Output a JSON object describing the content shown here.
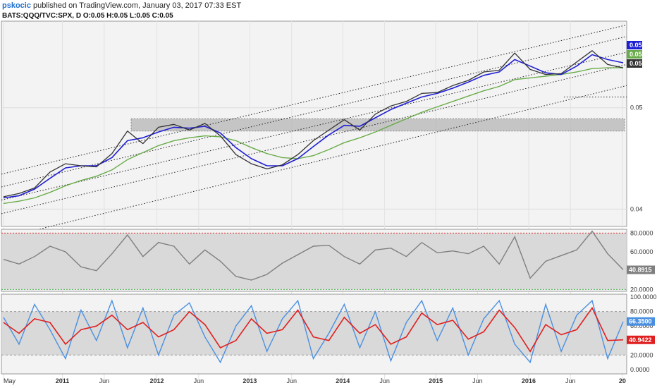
{
  "header": {
    "user": "pskocic",
    "published": "published on TradingView.com, January 03, 2017 07:33 EST",
    "symbol_line": "BATS:QQQ/TVC:SPX, D  O:0.05  H:0.05  L:0.05  C:0.05"
  },
  "colors": {
    "price": "#333333",
    "fast_ma": "#1f1fd6",
    "slow_ma": "#6aac4a",
    "rsi": "#7f7f7f",
    "stoch_k": "#4a90e2",
    "stoch_d": "#e02020",
    "band": "#d3d3d3"
  },
  "chart_data": [
    {
      "type": "line",
      "title": "BATS:QQQ/TVC:SPX",
      "xlabel": "",
      "ylabel": "",
      "x_ticks": [
        "May",
        "2011",
        "Jun",
        "2012",
        "Jun",
        "2013",
        "Jun",
        "2014",
        "Jun",
        "2015",
        "Jun",
        "2016",
        "Jun",
        "20"
      ],
      "y_scale": "log",
      "y_ticks": [
        "0.05",
        "0.04"
      ],
      "price_tags": {
        "blue": "0.05",
        "green": "0.05",
        "price": "0.05"
      },
      "x": [
        "2010-05",
        "2010-07",
        "2010-09",
        "2010-11",
        "2011-01",
        "2011-03",
        "2011-05",
        "2011-07",
        "2011-09",
        "2011-11",
        "2012-01",
        "2012-03",
        "2012-05",
        "2012-07",
        "2012-09",
        "2012-11",
        "2013-01",
        "2013-03",
        "2013-05",
        "2013-07",
        "2013-09",
        "2013-11",
        "2014-01",
        "2014-03",
        "2014-05",
        "2014-07",
        "2014-09",
        "2014-11",
        "2015-01",
        "2015-03",
        "2015-05",
        "2015-07",
        "2015-09",
        "2015-11",
        "2016-01",
        "2016-03",
        "2016-05",
        "2016-07",
        "2016-09",
        "2016-11",
        "2017-01"
      ],
      "series": [
        {
          "name": "QQQ/SPX",
          "values": [
            0.0411,
            0.0414,
            0.0419,
            0.0434,
            0.0442,
            0.044,
            0.0439,
            0.0452,
            0.0475,
            0.0462,
            0.0479,
            0.0482,
            0.0476,
            0.0483,
            0.047,
            0.0451,
            0.0442,
            0.0437,
            0.0441,
            0.0451,
            0.0465,
            0.0476,
            0.0487,
            0.0476,
            0.0493,
            0.0502,
            0.0507,
            0.0516,
            0.0517,
            0.0525,
            0.0531,
            0.0541,
            0.0543,
            0.0564,
            0.0544,
            0.0538,
            0.0539,
            0.0553,
            0.0567,
            0.055,
            0.0546
          ]
        },
        {
          "name": "",
          "values": [
            0.041,
            0.0412,
            0.0418,
            0.0428,
            0.0438,
            0.044,
            0.044,
            0.0448,
            0.0465,
            0.0468,
            0.0474,
            0.0479,
            0.0478,
            0.048,
            0.0473,
            0.0458,
            0.0447,
            0.044,
            0.044,
            0.0447,
            0.0459,
            0.0471,
            0.0481,
            0.048,
            0.0489,
            0.0498,
            0.0505,
            0.0512,
            0.0516,
            0.0522,
            0.0529,
            0.0537,
            0.0541,
            0.0556,
            0.0548,
            0.054,
            0.0538,
            0.0548,
            0.0562,
            0.0556,
            0.0552
          ]
        },
        {
          "name": "",
          "values": [
            0.0405,
            0.0407,
            0.041,
            0.0415,
            0.0421,
            0.0426,
            0.043,
            0.0436,
            0.0446,
            0.0453,
            0.046,
            0.0465,
            0.0468,
            0.047,
            0.0469,
            0.0465,
            0.0458,
            0.0452,
            0.0448,
            0.0447,
            0.045,
            0.0456,
            0.0463,
            0.0468,
            0.0474,
            0.0481,
            0.0488,
            0.0495,
            0.0501,
            0.0507,
            0.0513,
            0.0519,
            0.0524,
            0.0532,
            0.0534,
            0.0536,
            0.0538,
            0.0541,
            0.0545,
            0.0546,
            0.0546
          ]
        }
      ]
    },
    {
      "type": "line",
      "title": "",
      "y_ticks": [
        "80.0000",
        "60.0000",
        "40.0000",
        "20.0000"
      ],
      "ylim": [
        18,
        84
      ],
      "levels": [
        80,
        20
      ],
      "last_value_label": "40.8915",
      "series": [
        {
          "name": "",
          "values": [
            52,
            47,
            55,
            66,
            60,
            44,
            40,
            58,
            78,
            55,
            70,
            66,
            47,
            62,
            50,
            34,
            30,
            36,
            48,
            57,
            66,
            67,
            55,
            47,
            62,
            64,
            55,
            70,
            59,
            61,
            58,
            66,
            47,
            76,
            32,
            50,
            56,
            62,
            82,
            58,
            41
          ]
        }
      ]
    },
    {
      "type": "line",
      "title": "",
      "y_ticks": [
        "100.0000",
        "80.0000",
        "60.0000",
        "40.0000",
        "20.0000",
        "0.0000"
      ],
      "ylim": [
        -6,
        104
      ],
      "levels": [
        80,
        20
      ],
      "last_value_labels": {
        "k": "66.3500",
        "d": "40.9422"
      },
      "series": [
        {
          "name": "",
          "values": [
            72,
            35,
            90,
            55,
            15,
            82,
            40,
            95,
            30,
            85,
            20,
            75,
            92,
            45,
            10,
            60,
            88,
            25,
            70,
            95,
            15,
            50,
            90,
            30,
            80,
            12,
            65,
            95,
            40,
            85,
            20,
            70,
            95,
            35,
            10,
            90,
            25,
            75,
            95,
            15,
            66
          ]
        },
        {
          "name": "",
          "values": [
            65,
            50,
            70,
            65,
            35,
            55,
            60,
            75,
            55,
            65,
            45,
            55,
            80,
            62,
            30,
            40,
            70,
            50,
            55,
            82,
            45,
            40,
            72,
            50,
            62,
            35,
            45,
            78,
            62,
            68,
            42,
            52,
            82,
            58,
            25,
            62,
            48,
            55,
            85,
            40,
            41
          ]
        }
      ]
    }
  ]
}
